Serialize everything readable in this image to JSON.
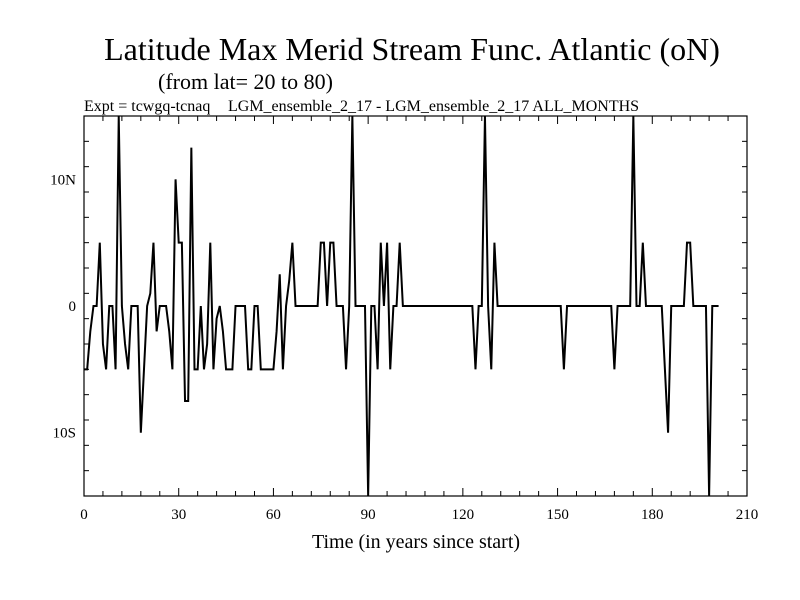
{
  "chart_data": {
    "type": "line",
    "title": "Latitude Max Merid Stream Func. Atlantic (oN)",
    "subtitle": "(from lat= 20 to 80)",
    "experiment_left": "Expt = tcwgq-tcnaq",
    "experiment_right": "LGM_ensemble_2_17 - LGM_ensemble_2_17  ALL_MONTHS",
    "xlabel": "Time (in years since start)",
    "ylabel": "",
    "xlim": [
      0,
      210
    ],
    "ylim": [
      -15,
      15
    ],
    "x_ticks": [
      0,
      30,
      60,
      90,
      120,
      150,
      180,
      210
    ],
    "x_tick_labels": [
      "0",
      "30",
      "60",
      "90",
      "120",
      "150",
      "180",
      "210"
    ],
    "y_ticks": [
      -10,
      0,
      10
    ],
    "y_tick_labels": [
      "10S",
      "0",
      "10N"
    ],
    "grid": false,
    "series": [
      {
        "name": "Latitude Max Merid Stream Func.",
        "color": "#000000",
        "values": [
          [
            0,
            -5
          ],
          [
            1,
            -5
          ],
          [
            2,
            -2
          ],
          [
            3,
            0
          ],
          [
            4,
            0
          ],
          [
            5,
            5
          ],
          [
            6,
            -3
          ],
          [
            7,
            -5
          ],
          [
            8,
            0
          ],
          [
            9,
            0
          ],
          [
            10,
            -5
          ],
          [
            11,
            15
          ],
          [
            12,
            0
          ],
          [
            13,
            -3
          ],
          [
            14,
            -5
          ],
          [
            15,
            0
          ],
          [
            16,
            0
          ],
          [
            17,
            0
          ],
          [
            18,
            -10
          ],
          [
            19,
            -5
          ],
          [
            20,
            0
          ],
          [
            21,
            1
          ],
          [
            22,
            5
          ],
          [
            23,
            -2
          ],
          [
            24,
            0
          ],
          [
            25,
            0
          ],
          [
            26,
            0
          ],
          [
            27,
            -2
          ],
          [
            28,
            -5
          ],
          [
            29,
            10
          ],
          [
            30,
            5
          ],
          [
            31,
            5
          ],
          [
            32,
            -7.5
          ],
          [
            33,
            -7.5
          ],
          [
            34,
            12.5
          ],
          [
            35,
            -5
          ],
          [
            36,
            -5
          ],
          [
            37,
            0
          ],
          [
            38,
            -5
          ],
          [
            39,
            -3
          ],
          [
            40,
            5
          ],
          [
            41,
            -5
          ],
          [
            42,
            -1
          ],
          [
            43,
            0
          ],
          [
            44,
            -2
          ],
          [
            45,
            -5
          ],
          [
            46,
            -5
          ],
          [
            47,
            -5
          ],
          [
            48,
            0
          ],
          [
            49,
            0
          ],
          [
            50,
            0
          ],
          [
            51,
            0
          ],
          [
            52,
            -5
          ],
          [
            53,
            -5
          ],
          [
            54,
            0
          ],
          [
            55,
            0
          ],
          [
            56,
            -5
          ],
          [
            57,
            -5
          ],
          [
            58,
            -5
          ],
          [
            59,
            -5
          ],
          [
            60,
            -5
          ],
          [
            61,
            -2
          ],
          [
            62,
            2.5
          ],
          [
            63,
            -5
          ],
          [
            64,
            0
          ],
          [
            65,
            2
          ],
          [
            66,
            5
          ],
          [
            67,
            0
          ],
          [
            68,
            0
          ],
          [
            69,
            0
          ],
          [
            70,
            0
          ],
          [
            71,
            0
          ],
          [
            72,
            0
          ],
          [
            73,
            0
          ],
          [
            74,
            0
          ],
          [
            75,
            5
          ],
          [
            76,
            5
          ],
          [
            77,
            0
          ],
          [
            78,
            5
          ],
          [
            79,
            5
          ],
          [
            80,
            0
          ],
          [
            81,
            0
          ],
          [
            82,
            0
          ],
          [
            83,
            -5
          ],
          [
            84,
            0
          ],
          [
            85,
            15
          ],
          [
            86,
            0
          ],
          [
            87,
            0
          ],
          [
            88,
            0
          ],
          [
            89,
            0
          ],
          [
            90,
            -15
          ],
          [
            91,
            0
          ],
          [
            92,
            0
          ],
          [
            93,
            -5
          ],
          [
            94,
            5
          ],
          [
            95,
            0
          ],
          [
            96,
            5
          ],
          [
            97,
            -5
          ],
          [
            98,
            0
          ],
          [
            99,
            0
          ],
          [
            100,
            5
          ],
          [
            101,
            0
          ],
          [
            102,
            0
          ],
          [
            103,
            0
          ],
          [
            104,
            0
          ],
          [
            105,
            0
          ],
          [
            106,
            0
          ],
          [
            107,
            0
          ],
          [
            108,
            0
          ],
          [
            109,
            0
          ],
          [
            110,
            0
          ],
          [
            111,
            0
          ],
          [
            112,
            0
          ],
          [
            113,
            0
          ],
          [
            114,
            0
          ],
          [
            115,
            0
          ],
          [
            116,
            0
          ],
          [
            117,
            0
          ],
          [
            118,
            0
          ],
          [
            119,
            0
          ],
          [
            120,
            0
          ],
          [
            121,
            0
          ],
          [
            122,
            0
          ],
          [
            123,
            0
          ],
          [
            124,
            -5
          ],
          [
            125,
            0
          ],
          [
            126,
            0
          ],
          [
            127,
            15
          ],
          [
            128,
            0
          ],
          [
            129,
            -5
          ],
          [
            130,
            5
          ],
          [
            131,
            0
          ],
          [
            132,
            0
          ],
          [
            133,
            0
          ],
          [
            134,
            0
          ],
          [
            135,
            0
          ],
          [
            136,
            0
          ],
          [
            137,
            0
          ],
          [
            138,
            0
          ],
          [
            139,
            0
          ],
          [
            140,
            0
          ],
          [
            141,
            0
          ],
          [
            142,
            0
          ],
          [
            143,
            0
          ],
          [
            144,
            0
          ],
          [
            145,
            0
          ],
          [
            146,
            0
          ],
          [
            147,
            0
          ],
          [
            148,
            0
          ],
          [
            149,
            0
          ],
          [
            150,
            0
          ],
          [
            151,
            0
          ],
          [
            152,
            -5
          ],
          [
            153,
            0
          ],
          [
            154,
            0
          ],
          [
            155,
            0
          ],
          [
            156,
            0
          ],
          [
            157,
            0
          ],
          [
            158,
            0
          ],
          [
            159,
            0
          ],
          [
            160,
            0
          ],
          [
            161,
            0
          ],
          [
            162,
            0
          ],
          [
            163,
            0
          ],
          [
            164,
            0
          ],
          [
            165,
            0
          ],
          [
            166,
            0
          ],
          [
            167,
            0
          ],
          [
            168,
            -5
          ],
          [
            169,
            0
          ],
          [
            170,
            0
          ],
          [
            171,
            0
          ],
          [
            172,
            0
          ],
          [
            173,
            0
          ],
          [
            174,
            15
          ],
          [
            175,
            0
          ],
          [
            176,
            0
          ],
          [
            177,
            5
          ],
          [
            178,
            0
          ],
          [
            179,
            0
          ],
          [
            180,
            0
          ],
          [
            181,
            0
          ],
          [
            182,
            0
          ],
          [
            183,
            0
          ],
          [
            184,
            -5
          ],
          [
            185,
            -10
          ],
          [
            186,
            0
          ],
          [
            187,
            0
          ],
          [
            188,
            0
          ],
          [
            189,
            0
          ],
          [
            190,
            0
          ],
          [
            191,
            5
          ],
          [
            192,
            5
          ],
          [
            193,
            0
          ],
          [
            194,
            0
          ],
          [
            195,
            0
          ],
          [
            196,
            0
          ],
          [
            197,
            0
          ],
          [
            198,
            -15
          ],
          [
            199,
            0
          ],
          [
            200,
            0
          ],
          [
            201,
            0
          ]
        ]
      }
    ]
  }
}
